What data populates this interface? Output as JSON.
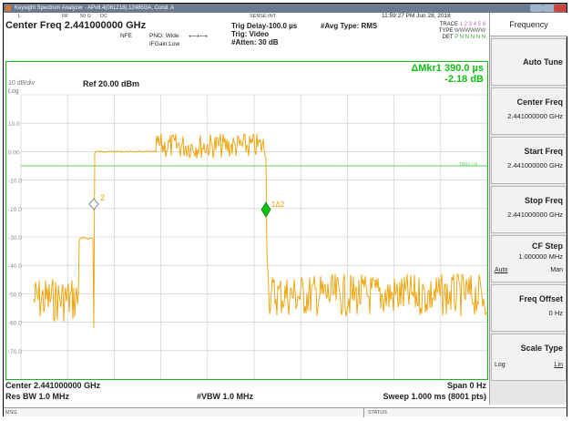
{
  "window": {
    "title": "Keysight Spectrum Analyzer - APv8.4(061218),12485GA, Cond. A"
  },
  "header": {
    "strip": {
      "mode": "L",
      "rf": "RF",
      "impedance": "50 Ω",
      "coupling": "DC",
      "sense": "SENSE:INT"
    },
    "datetime": "11:59:27 PM Jun 28, 2018",
    "center_freq_title": "Center Freq 2.441000000 GHz",
    "nfe": "NFE",
    "pno": "PNO: Wide",
    "ifgain": "IFGain:Low",
    "trig_delay": "Trig Delay-100.0 µs",
    "trig": "Trig: Video",
    "atten": "#Atten: 30 dB",
    "avg_type": "#Avg Type: RMS",
    "trace_line": "TRACE",
    "trace_nums": "1 2 3 4 5 6",
    "type_line": "TYPE",
    "type_vals": "WWWWWW",
    "det_line": "DET",
    "det_vals": "P N N N N N"
  },
  "plot": {
    "marker_line1": "ΔMkr1 390.0 µs",
    "marker_line2": "-2.18 dB",
    "scale_div": "10 dB/div",
    "log": "Log",
    "ref_level": "Ref 20.00 dBm",
    "trig_lvl_label": "TRIG LVL",
    "marker_label_2": "2",
    "marker_label_1": "1Δ2",
    "y_ticks": [
      "10.0",
      "0.00",
      "-10.0",
      "-20.0",
      "-30.0",
      "-40.0",
      "-50.0",
      "-60.0",
      "-70.0"
    ]
  },
  "footer": {
    "center": "Center 2.441000000 GHz",
    "span": "Span 0 Hz",
    "res_bw": "Res BW 1.0 MHz",
    "vbw": "#VBW 1.0 MHz",
    "sweep": "Sweep  1.000 ms (8001 pts)"
  },
  "statusbar": {
    "msg": "MSG",
    "status": "STATUS"
  },
  "softkeys": {
    "title": "Frequency",
    "items": [
      {
        "label": "Auto Tune",
        "value": ""
      },
      {
        "label": "Center Freq",
        "value": "2.441000000 GHz"
      },
      {
        "label": "Start Freq",
        "value": "2.441000000 GHz"
      },
      {
        "label": "Stop Freq",
        "value": "2.441000000 GHz"
      },
      {
        "label": "CF Step",
        "value": "1.000000 MHz",
        "auto": "Auto",
        "man": "Man"
      },
      {
        "label": "Freq Offset",
        "value": "0 Hz"
      },
      {
        "label": "Scale Type",
        "left": "Log",
        "right": "Lin"
      }
    ]
  },
  "colors": {
    "trace": "#f0a000",
    "marker": "#10c010",
    "grid": "#c8c8c8",
    "border": "#1db31d"
  }
}
